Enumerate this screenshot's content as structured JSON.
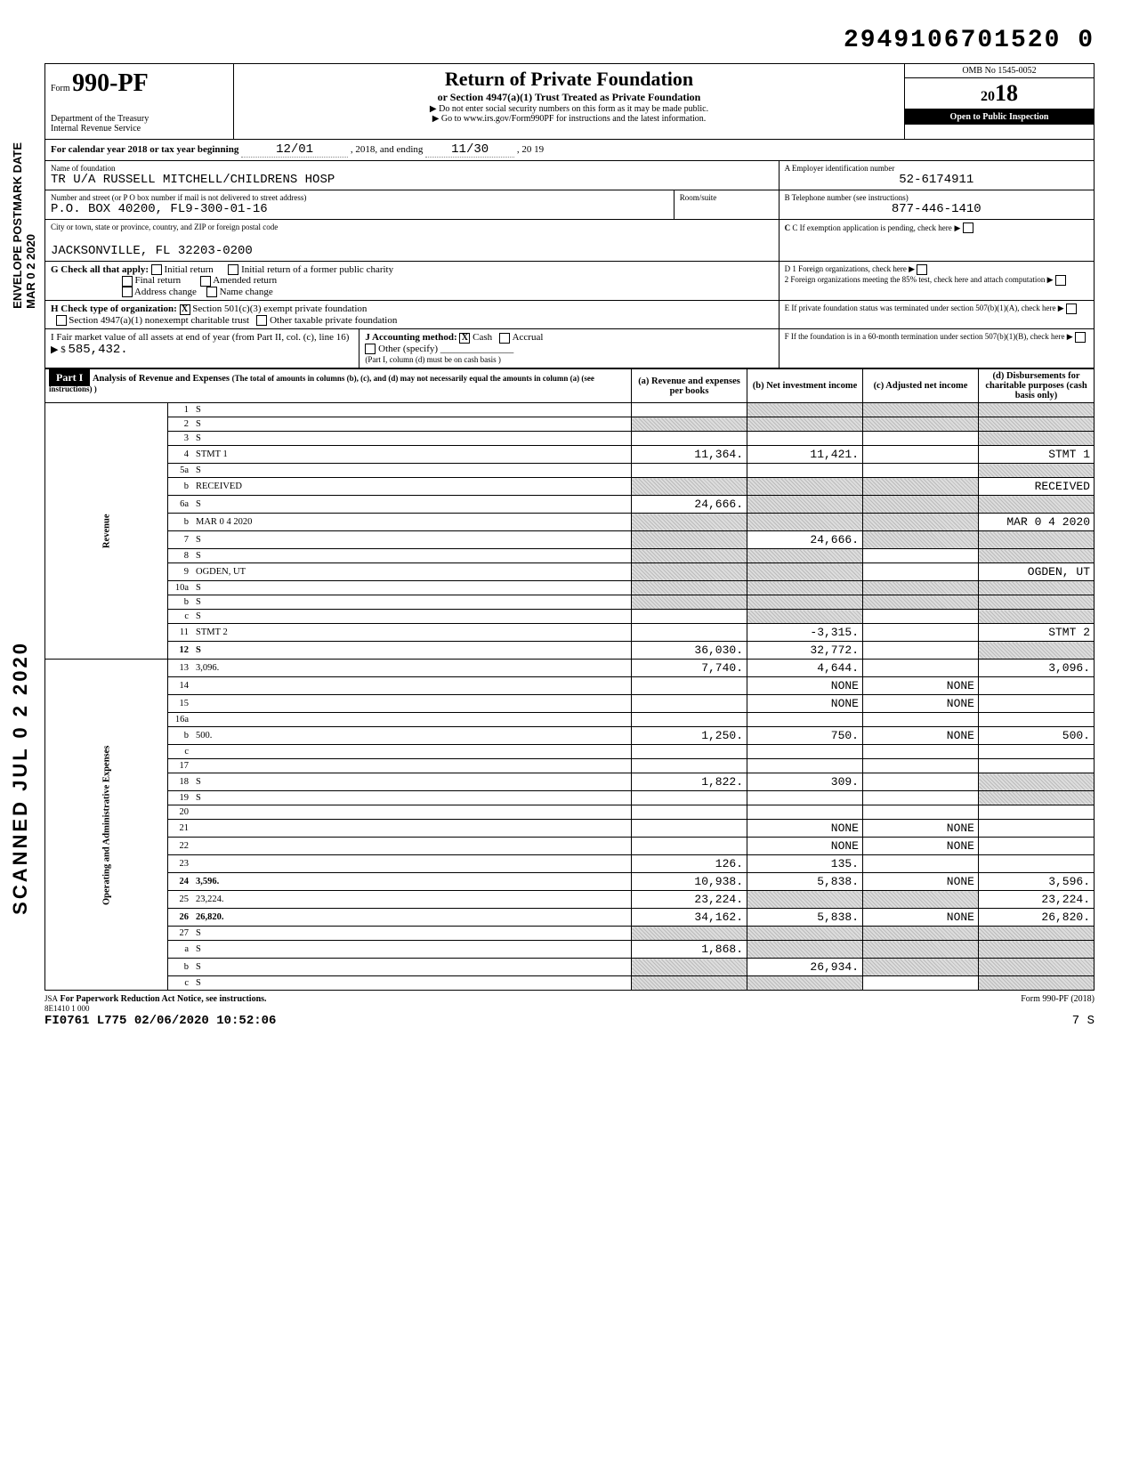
{
  "document_id": "2949106701520 0",
  "form": {
    "prefix": "Form",
    "number": "990-PF"
  },
  "dept": "Department of the Treasury\nInternal Revenue Service",
  "title": "Return of Private Foundation",
  "subtitle": "or Section 4947(a)(1) Trust Treated as Private Foundation",
  "note1": "▶ Do not enter social security numbers on this form as it may be made public.",
  "note2": "▶ Go to www.irs.gov/Form990PF for instructions and the latest information.",
  "omb": "OMB No 1545-0052",
  "year": "2018",
  "year_big": "18",
  "inspect": "Open to Public Inspection",
  "cal_year": "For calendar year 2018 or tax year beginning",
  "begin_date": "12/01",
  "begin_year": ", 2018, and ending",
  "end_date": "11/30",
  "end_year": ", 20 19",
  "labels": {
    "name": "Name of foundation",
    "ein_lbl": "A  Employer identification number",
    "addr": "Number and street (or P O  box number if mail is not delivered to street address)",
    "room": "Room/suite",
    "tel_lbl": "B  Telephone number (see instructions)",
    "city": "City or town, state or province, country, and ZIP or foreign postal code",
    "c": "C  If exemption application is pending, check here",
    "g": "G  Check all that apply:",
    "g1": "Initial return",
    "g2": "Final return",
    "g3": "Address change",
    "g4": "Initial return of a former public charity",
    "g5": "Amended return",
    "g6": "Name change",
    "d1": "D  1  Foreign organizations, check here",
    "d2": "2  Foreign organizations meeting the 85% test, check here and attach computation",
    "h": "H  Check type of organization:",
    "h1": "Section 501(c)(3) exempt private foundation",
    "h2": "Section 4947(a)(1) nonexempt charitable trust",
    "h3": "Other taxable private foundation",
    "e": "E  If private foundation status was terminated under section 507(b)(1)(A), check here",
    "i": "I  Fair market value of all assets at end of year (from Part II, col. (c), line 16) ▶ $",
    "j": "J Accounting method:",
    "j1": "Cash",
    "j2": "Accrual",
    "j3": "Other (specify)",
    "j_note": "(Part I, column (d) must be on cash basis )",
    "f": "F  If the foundation is in a 60-month termination under section 507(b)(1)(B), check here"
  },
  "foundation_name": "TR U/A RUSSELL MITCHELL/CHILDRENS HOSP",
  "ein": "52-6174911",
  "street": "P.O. BOX 40200, FL9-300-01-16",
  "phone": "877-446-1410",
  "city_val": "JACKSONVILLE, FL 32203-0200",
  "h_checked": "X",
  "j_checked": "X",
  "fmv": "585,432.",
  "part1_hdr": "Part I",
  "part1_title": "Analysis of Revenue and Expenses",
  "part1_note": "(The total of amounts in columns (b), (c), and (d) may not necessarily equal the amounts in column (a) (see instructions) )",
  "col_a": "(a) Revenue and expenses per books",
  "col_b": "(b) Net investment income",
  "col_c": "(c) Adjusted net income",
  "col_d": "(d) Disbursements for charitable purposes (cash basis only)",
  "sections": {
    "revenue": "Revenue",
    "expenses": "Operating and Administrative Expenses"
  },
  "lines": [
    {
      "n": "1",
      "d": "S",
      "a": "",
      "b": "S",
      "c": "S"
    },
    {
      "n": "2",
      "d": "S",
      "a": "S",
      "b": "S",
      "c": "S"
    },
    {
      "n": "3",
      "d": "S",
      "a": "",
      "b": "",
      "c": ""
    },
    {
      "n": "4",
      "d": "STMT 1",
      "a": "11,364.",
      "b": "11,421.",
      "c": ""
    },
    {
      "n": "5a",
      "d": "S",
      "a": "",
      "b": "",
      "c": ""
    },
    {
      "n": "b",
      "d": "RECEIVED",
      "a": "S",
      "b": "S",
      "c": "S"
    },
    {
      "n": "6a",
      "d": "S",
      "a": "24,666.",
      "b": "S",
      "c": "S"
    },
    {
      "n": "b",
      "d": "MAR 0 4 2020",
      "a": "S",
      "b": "S",
      "c": "S"
    },
    {
      "n": "7",
      "d": "S",
      "a": "S",
      "b": "24,666.",
      "c": "S"
    },
    {
      "n": "8",
      "d": "S",
      "a": "S",
      "b": "S",
      "c": ""
    },
    {
      "n": "9",
      "d": "OGDEN, UT",
      "a": "S",
      "b": "S",
      "c": ""
    },
    {
      "n": "10a",
      "d": "S",
      "a": "S",
      "b": "S",
      "c": "S"
    },
    {
      "n": "b",
      "d": "S",
      "a": "S",
      "b": "S",
      "c": "S"
    },
    {
      "n": "c",
      "d": "S",
      "a": "",
      "b": "S",
      "c": ""
    },
    {
      "n": "11",
      "d": "STMT 2",
      "a": "",
      "b": "-3,315.",
      "c": ""
    },
    {
      "n": "12",
      "d": "S",
      "a": "36,030.",
      "b": "32,772.",
      "c": "",
      "bold": true
    },
    {
      "n": "13",
      "d": "3,096.",
      "a": "7,740.",
      "b": "4,644.",
      "c": ""
    },
    {
      "n": "14",
      "d": "",
      "a": "",
      "b": "NONE",
      "c": "NONE"
    },
    {
      "n": "15",
      "d": "",
      "a": "",
      "b": "NONE",
      "c": "NONE"
    },
    {
      "n": "16a",
      "d": "",
      "a": "",
      "b": "",
      "c": ""
    },
    {
      "n": "b",
      "d": "500.",
      "a": "1,250.",
      "b": "750.",
      "c": "NONE"
    },
    {
      "n": "c",
      "d": "",
      "a": "",
      "b": "",
      "c": ""
    },
    {
      "n": "17",
      "d": "",
      "a": "",
      "b": "",
      "c": ""
    },
    {
      "n": "18",
      "d": "S",
      "a": "1,822.",
      "b": "309.",
      "c": ""
    },
    {
      "n": "19",
      "d": "S",
      "a": "",
      "b": "",
      "c": ""
    },
    {
      "n": "20",
      "d": "",
      "a": "",
      "b": "",
      "c": ""
    },
    {
      "n": "21",
      "d": "",
      "a": "",
      "b": "NONE",
      "c": "NONE"
    },
    {
      "n": "22",
      "d": "",
      "a": "",
      "b": "NONE",
      "c": "NONE"
    },
    {
      "n": "23",
      "d": "",
      "a": "126.",
      "b": "135.",
      "c": ""
    },
    {
      "n": "24",
      "d": "3,596.",
      "a": "10,938.",
      "b": "5,838.",
      "c": "NONE",
      "bold": true
    },
    {
      "n": "25",
      "d": "23,224.",
      "a": "23,224.",
      "b": "S",
      "c": "S"
    },
    {
      "n": "26",
      "d": "26,820.",
      "a": "34,162.",
      "b": "5,838.",
      "c": "NONE",
      "bold": true
    },
    {
      "n": "27",
      "d": "S",
      "a": "S",
      "b": "S",
      "c": "S"
    },
    {
      "n": "a",
      "d": "S",
      "a": "1,868.",
      "b": "S",
      "c": "S"
    },
    {
      "n": "b",
      "d": "S",
      "a": "S",
      "b": "26,934.",
      "c": "S"
    },
    {
      "n": "c",
      "d": "S",
      "a": "S",
      "b": "S",
      "c": ""
    }
  ],
  "footer": {
    "jsa": "JSA",
    "pra": "For Paperwork Reduction Act Notice, see instructions.",
    "code": "8E1410 1 000",
    "stamp": "FI0761 L775 02/06/2020 10:52:06",
    "form": "Form 990-PF (2018)",
    "page": "7        S"
  },
  "side_stamps": {
    "scanned": "SCANNED JUL 0 2 2020",
    "postmark": "ENVELOPE POSTMARK DATE",
    "date": "MAR 0 2 2020"
  }
}
